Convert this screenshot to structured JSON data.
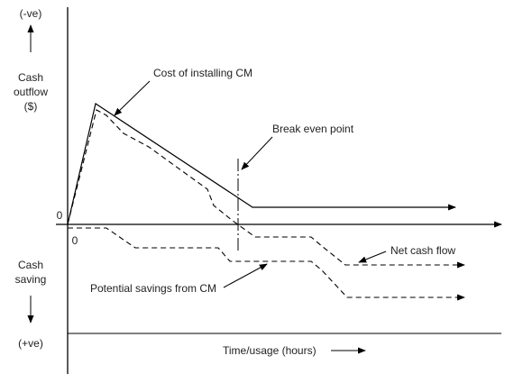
{
  "axes": {
    "top_sign": "(-ve)",
    "outflow_label": [
      "Cash",
      "outflow",
      "($)"
    ],
    "saving_label": [
      "Cash",
      "saving"
    ],
    "bottom_sign": "(+ve)",
    "origin_left": "0",
    "origin_below": "0",
    "time_label": "Time/usage (hours)"
  },
  "annotations": {
    "cost": "Cost of installing CM",
    "break_even": "Break even point",
    "net_cash_flow": "Net cash flow",
    "savings": "Potential savings from CM"
  }
}
